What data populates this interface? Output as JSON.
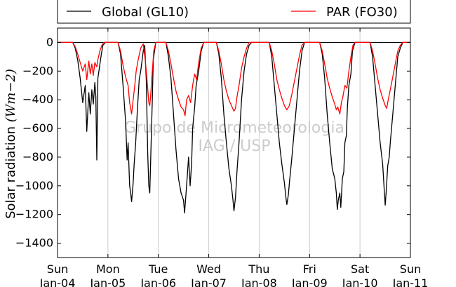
{
  "chart_data": {
    "type": "line",
    "title": "",
    "ylabel": "Solar radiation",
    "ylabel_unit": "(Wm−2)",
    "ylim": [
      -1500,
      100
    ],
    "yticks": [
      0,
      -200,
      -400,
      -600,
      -800,
      -1000,
      -1200,
      -1400
    ],
    "xlim": [
      0,
      7
    ],
    "x_unit": "days since Sun Jan-04",
    "xticks": [
      {
        "day": "Sun",
        "date": "Jan-04"
      },
      {
        "day": "Mon",
        "date": "Jan-05"
      },
      {
        "day": "Tue",
        "date": "Jan-06"
      },
      {
        "day": "Wed",
        "date": "Jan-07"
      },
      {
        "day": "Thu",
        "date": "Jan-08"
      },
      {
        "day": "Fri",
        "date": "Jan-09"
      },
      {
        "day": "Sat",
        "date": "Jan-10"
      },
      {
        "day": "Sun",
        "date": "Jan-11"
      }
    ],
    "grid": "vertical",
    "legend": "top",
    "watermark": [
      "Grupo de Micrometeorologia",
      "IAG / USP"
    ],
    "series": [
      {
        "name": "Global (GL10)",
        "color": "#000000",
        "points": [
          [
            0.0,
            0
          ],
          [
            0.3,
            0
          ],
          [
            0.35,
            -40
          ],
          [
            0.4,
            -120
          ],
          [
            0.45,
            -250
          ],
          [
            0.5,
            -420
          ],
          [
            0.55,
            -300
          ],
          [
            0.58,
            -620
          ],
          [
            0.62,
            -350
          ],
          [
            0.65,
            -500
          ],
          [
            0.68,
            -330
          ],
          [
            0.71,
            -430
          ],
          [
            0.74,
            -280
          ],
          [
            0.76,
            -380
          ],
          [
            0.78,
            -820
          ],
          [
            0.8,
            -250
          ],
          [
            0.83,
            -180
          ],
          [
            0.87,
            -80
          ],
          [
            0.9,
            -20
          ],
          [
            0.95,
            0
          ],
          [
            1.2,
            0
          ],
          [
            1.25,
            -80
          ],
          [
            1.3,
            -300
          ],
          [
            1.35,
            -550
          ],
          [
            1.38,
            -820
          ],
          [
            1.4,
            -700
          ],
          [
            1.43,
            -1000
          ],
          [
            1.45,
            -1050
          ],
          [
            1.47,
            -1110
          ],
          [
            1.5,
            -980
          ],
          [
            1.52,
            -850
          ],
          [
            1.55,
            -700
          ],
          [
            1.58,
            -500
          ],
          [
            1.62,
            -260
          ],
          [
            1.65,
            -200
          ],
          [
            1.7,
            -60
          ],
          [
            1.73,
            -20
          ],
          [
            1.76,
            -260
          ],
          [
            1.79,
            -780
          ],
          [
            1.81,
            -1000
          ],
          [
            1.83,
            -1050
          ],
          [
            1.85,
            -800
          ],
          [
            1.88,
            -400
          ],
          [
            1.9,
            -120
          ],
          [
            1.95,
            0
          ],
          [
            2.15,
            0
          ],
          [
            2.2,
            -100
          ],
          [
            2.25,
            -250
          ],
          [
            2.3,
            -500
          ],
          [
            2.35,
            -750
          ],
          [
            2.4,
            -950
          ],
          [
            2.45,
            -1050
          ],
          [
            2.5,
            -1100
          ],
          [
            2.52,
            -1190
          ],
          [
            2.55,
            -1050
          ],
          [
            2.58,
            -900
          ],
          [
            2.6,
            -800
          ],
          [
            2.63,
            -1000
          ],
          [
            2.66,
            -850
          ],
          [
            2.68,
            -600
          ],
          [
            2.72,
            -450
          ],
          [
            2.75,
            -300
          ],
          [
            2.8,
            -200
          ],
          [
            2.85,
            -60
          ],
          [
            2.9,
            0
          ],
          [
            3.15,
            0
          ],
          [
            3.2,
            -80
          ],
          [
            3.25,
            -250
          ],
          [
            3.3,
            -500
          ],
          [
            3.35,
            -700
          ],
          [
            3.4,
            -880
          ],
          [
            3.45,
            -1000
          ],
          [
            3.48,
            -1100
          ],
          [
            3.5,
            -1175
          ],
          [
            3.53,
            -1080
          ],
          [
            3.56,
            -900
          ],
          [
            3.6,
            -700
          ],
          [
            3.65,
            -400
          ],
          [
            3.7,
            -200
          ],
          [
            3.75,
            -80
          ],
          [
            3.8,
            -20
          ],
          [
            3.85,
            0
          ],
          [
            4.2,
            0
          ],
          [
            4.25,
            -100
          ],
          [
            4.3,
            -300
          ],
          [
            4.35,
            -500
          ],
          [
            4.4,
            -700
          ],
          [
            4.45,
            -850
          ],
          [
            4.5,
            -980
          ],
          [
            4.53,
            -1080
          ],
          [
            4.55,
            -1130
          ],
          [
            4.58,
            -1060
          ],
          [
            4.6,
            -980
          ],
          [
            4.65,
            -800
          ],
          [
            4.7,
            -600
          ],
          [
            4.75,
            -400
          ],
          [
            4.8,
            -200
          ],
          [
            4.85,
            -60
          ],
          [
            4.9,
            0
          ],
          [
            5.2,
            0
          ],
          [
            5.25,
            -80
          ],
          [
            5.3,
            -250
          ],
          [
            5.35,
            -500
          ],
          [
            5.4,
            -700
          ],
          [
            5.45,
            -880
          ],
          [
            5.5,
            -950
          ],
          [
            5.53,
            -1050
          ],
          [
            5.55,
            -1165
          ],
          [
            5.57,
            -1100
          ],
          [
            5.6,
            -1050
          ],
          [
            5.62,
            -1150
          ],
          [
            5.65,
            -950
          ],
          [
            5.68,
            -900
          ],
          [
            5.7,
            -700
          ],
          [
            5.73,
            -650
          ],
          [
            5.75,
            -450
          ],
          [
            5.78,
            -300
          ],
          [
            5.82,
            -220
          ],
          [
            5.85,
            -60
          ],
          [
            5.9,
            0
          ],
          [
            6.2,
            0
          ],
          [
            6.25,
            -100
          ],
          [
            6.3,
            -300
          ],
          [
            6.35,
            -500
          ],
          [
            6.4,
            -700
          ],
          [
            6.45,
            -850
          ],
          [
            6.48,
            -1020
          ],
          [
            6.5,
            -1135
          ],
          [
            6.52,
            -1040
          ],
          [
            6.55,
            -860
          ],
          [
            6.58,
            -800
          ],
          [
            6.6,
            -700
          ],
          [
            6.65,
            -500
          ],
          [
            6.7,
            -300
          ],
          [
            6.75,
            -100
          ],
          [
            6.8,
            -40
          ],
          [
            6.85,
            0
          ],
          [
            7.0,
            0
          ]
        ]
      },
      {
        "name": "PAR (FO30)",
        "color": "#ff0000",
        "points": [
          [
            0.0,
            0
          ],
          [
            0.3,
            0
          ],
          [
            0.35,
            -30
          ],
          [
            0.4,
            -80
          ],
          [
            0.45,
            -140
          ],
          [
            0.5,
            -200
          ],
          [
            0.55,
            -150
          ],
          [
            0.58,
            -260
          ],
          [
            0.62,
            -130
          ],
          [
            0.65,
            -220
          ],
          [
            0.68,
            -150
          ],
          [
            0.71,
            -230
          ],
          [
            0.74,
            -140
          ],
          [
            0.78,
            -170
          ],
          [
            0.8,
            -120
          ],
          [
            0.84,
            -60
          ],
          [
            0.88,
            -20
          ],
          [
            0.92,
            0
          ],
          [
            1.2,
            0
          ],
          [
            1.25,
            -60
          ],
          [
            1.3,
            -160
          ],
          [
            1.35,
            -240
          ],
          [
            1.4,
            -300
          ],
          [
            1.43,
            -420
          ],
          [
            1.45,
            -460
          ],
          [
            1.47,
            -500
          ],
          [
            1.5,
            -400
          ],
          [
            1.53,
            -310
          ],
          [
            1.56,
            -200
          ],
          [
            1.6,
            -120
          ],
          [
            1.65,
            -40
          ],
          [
            1.7,
            -10
          ],
          [
            1.74,
            -120
          ],
          [
            1.78,
            -280
          ],
          [
            1.81,
            -420
          ],
          [
            1.83,
            -440
          ],
          [
            1.85,
            -360
          ],
          [
            1.88,
            -200
          ],
          [
            1.91,
            -60
          ],
          [
            1.95,
            0
          ],
          [
            2.15,
            0
          ],
          [
            2.2,
            -60
          ],
          [
            2.25,
            -150
          ],
          [
            2.3,
            -250
          ],
          [
            2.35,
            -340
          ],
          [
            2.4,
            -400
          ],
          [
            2.45,
            -450
          ],
          [
            2.5,
            -470
          ],
          [
            2.53,
            -510
          ],
          [
            2.56,
            -400
          ],
          [
            2.6,
            -370
          ],
          [
            2.64,
            -420
          ],
          [
            2.68,
            -300
          ],
          [
            2.72,
            -220
          ],
          [
            2.76,
            -260
          ],
          [
            2.8,
            -140
          ],
          [
            2.85,
            -40
          ],
          [
            2.9,
            0
          ],
          [
            3.15,
            0
          ],
          [
            3.2,
            -60
          ],
          [
            3.25,
            -150
          ],
          [
            3.3,
            -260
          ],
          [
            3.35,
            -340
          ],
          [
            3.4,
            -400
          ],
          [
            3.45,
            -440
          ],
          [
            3.5,
            -480
          ],
          [
            3.53,
            -460
          ],
          [
            3.56,
            -380
          ],
          [
            3.6,
            -300
          ],
          [
            3.65,
            -180
          ],
          [
            3.7,
            -100
          ],
          [
            3.75,
            -40
          ],
          [
            3.8,
            0
          ],
          [
            4.2,
            0
          ],
          [
            4.25,
            -60
          ],
          [
            4.3,
            -150
          ],
          [
            4.35,
            -260
          ],
          [
            4.4,
            -330
          ],
          [
            4.45,
            -390
          ],
          [
            4.5,
            -440
          ],
          [
            4.55,
            -470
          ],
          [
            4.6,
            -440
          ],
          [
            4.65,
            -360
          ],
          [
            4.7,
            -270
          ],
          [
            4.75,
            -180
          ],
          [
            4.8,
            -90
          ],
          [
            4.85,
            -20
          ],
          [
            4.9,
            0
          ],
          [
            5.2,
            0
          ],
          [
            5.25,
            -60
          ],
          [
            5.3,
            -150
          ],
          [
            5.35,
            -250
          ],
          [
            5.4,
            -320
          ],
          [
            5.45,
            -380
          ],
          [
            5.5,
            -430
          ],
          [
            5.53,
            -470
          ],
          [
            5.56,
            -450
          ],
          [
            5.6,
            -500
          ],
          [
            5.63,
            -420
          ],
          [
            5.66,
            -380
          ],
          [
            5.7,
            -300
          ],
          [
            5.74,
            -320
          ],
          [
            5.78,
            -200
          ],
          [
            5.82,
            -100
          ],
          [
            5.86,
            -20
          ],
          [
            5.9,
            0
          ],
          [
            6.2,
            0
          ],
          [
            6.25,
            -60
          ],
          [
            6.3,
            -150
          ],
          [
            6.35,
            -250
          ],
          [
            6.4,
            -330
          ],
          [
            6.45,
            -390
          ],
          [
            6.5,
            -440
          ],
          [
            6.53,
            -460
          ],
          [
            6.56,
            -400
          ],
          [
            6.6,
            -330
          ],
          [
            6.65,
            -240
          ],
          [
            6.7,
            -150
          ],
          [
            6.75,
            -60
          ],
          [
            6.8,
            -20
          ],
          [
            6.85,
            0
          ],
          [
            7.0,
            0
          ]
        ]
      }
    ]
  }
}
